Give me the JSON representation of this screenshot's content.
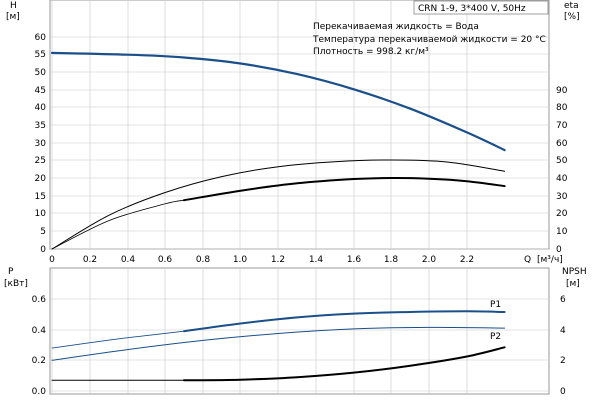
{
  "header": {
    "model": "CRN 1-9, 3*400 V, 50Hz",
    "notes": [
      "Перекачиваемая жидкость = Вода",
      "Температура перекачиваемой жидкости = 20 °C",
      "Плотность = 998.2 кг/м³"
    ]
  },
  "colors": {
    "blue": "#1b4f8a",
    "black": "#000000",
    "grid": "#c8c8c8"
  },
  "chart_data": [
    {
      "type": "line",
      "name": "head-efficiency",
      "left_axis": {
        "label": "H",
        "unit": "[м]",
        "ylim": [
          0,
          60
        ],
        "ticks": [
          "0",
          "5",
          "10",
          "15",
          "20",
          "25",
          "30",
          "35",
          "40",
          "45",
          "50",
          "55",
          "60"
        ]
      },
      "right_axis": {
        "label": "eta",
        "unit": "[%]",
        "ylim": [
          0,
          120
        ],
        "ticks": [
          "0",
          "10",
          "20",
          "30",
          "40",
          "50",
          "60",
          "70",
          "80",
          "90"
        ]
      },
      "x_axis": {
        "label": "Q",
        "unit": "[м³/ч]",
        "xlim": [
          0,
          2.6
        ],
        "ticks": [
          "0",
          "0.2",
          "0.4",
          "0.6",
          "0.8",
          "1.0",
          "1.2",
          "1.4",
          "1.6",
          "1.8",
          "2.0",
          "2.2"
        ]
      },
      "series": [
        {
          "key": "H",
          "axis": "left",
          "color": "blue",
          "width": 2.2,
          "x": [
            0,
            0.4,
            0.7,
            1.0,
            1.3,
            1.6,
            1.9,
            2.2,
            2.4
          ],
          "y": [
            55.5,
            55.0,
            54.2,
            52.5,
            49.5,
            45.2,
            39.7,
            33.0,
            28.0
          ]
        },
        {
          "key": "eta_overall",
          "axis": "left",
          "color": "black",
          "width": 1.0,
          "x": [
            0,
            0.3,
            0.6,
            0.9,
            1.2,
            1.5,
            1.8,
            2.1,
            2.4
          ],
          "y": [
            0,
            9.5,
            16.0,
            20.5,
            23.3,
            24.7,
            25.2,
            24.6,
            22.0
          ]
        },
        {
          "key": "eta_segment_thin",
          "axis": "left",
          "color": "black",
          "width": 0.8,
          "x": [
            0,
            0.3,
            0.6,
            0.7
          ],
          "y": [
            0,
            8.0,
            12.8,
            13.8
          ]
        },
        {
          "key": "eta_pump",
          "axis": "left",
          "color": "black",
          "width": 2.0,
          "x": [
            0.7,
            1.0,
            1.3,
            1.6,
            1.8,
            2.0,
            2.2,
            2.4
          ],
          "y": [
            13.8,
            16.5,
            18.6,
            19.8,
            20.1,
            19.9,
            19.2,
            17.8
          ]
        }
      ]
    },
    {
      "type": "line",
      "name": "power-npsh",
      "left_axis": {
        "label": "P",
        "unit": "[кВт]",
        "ylim": [
          0,
          0.7
        ],
        "ticks": [
          "0.0",
          "0.2",
          "0.4",
          "0.6"
        ]
      },
      "right_axis": {
        "label": "NPSH",
        "unit": "[м]",
        "ylim": [
          0,
          7
        ],
        "ticks": [
          "0",
          "2",
          "4",
          "6"
        ]
      },
      "x_axis": {
        "xlim": [
          0,
          2.6
        ]
      },
      "series": [
        {
          "key": "P1",
          "label": "P1",
          "axis": "left",
          "color": "blue",
          "width": 2.0,
          "x": [
            0.7,
            1.0,
            1.3,
            1.6,
            1.9,
            2.2,
            2.4
          ],
          "y": [
            0.39,
            0.44,
            0.48,
            0.505,
            0.515,
            0.52,
            0.515
          ]
        },
        {
          "key": "P1_thin",
          "axis": "left",
          "color": "blue",
          "width": 0.9,
          "x": [
            0,
            0.35,
            0.7
          ],
          "y": [
            0.28,
            0.34,
            0.39
          ]
        },
        {
          "key": "P2",
          "label": "P2",
          "axis": "left",
          "color": "blue",
          "width": 1.0,
          "x": [
            0,
            0.4,
            0.8,
            1.2,
            1.6,
            2.0,
            2.4
          ],
          "y": [
            0.2,
            0.27,
            0.33,
            0.375,
            0.405,
            0.415,
            0.41
          ]
        },
        {
          "key": "NPSH_flat",
          "axis": "right",
          "color": "black",
          "width": 1.0,
          "x": [
            0,
            0.7
          ],
          "y": [
            0.7,
            0.7
          ]
        },
        {
          "key": "NPSH",
          "axis": "right",
          "color": "black",
          "width": 2.0,
          "x": [
            0.7,
            1.0,
            1.3,
            1.6,
            1.9,
            2.2,
            2.4
          ],
          "y": [
            0.7,
            0.74,
            0.9,
            1.2,
            1.65,
            2.25,
            2.85
          ]
        }
      ]
    }
  ]
}
